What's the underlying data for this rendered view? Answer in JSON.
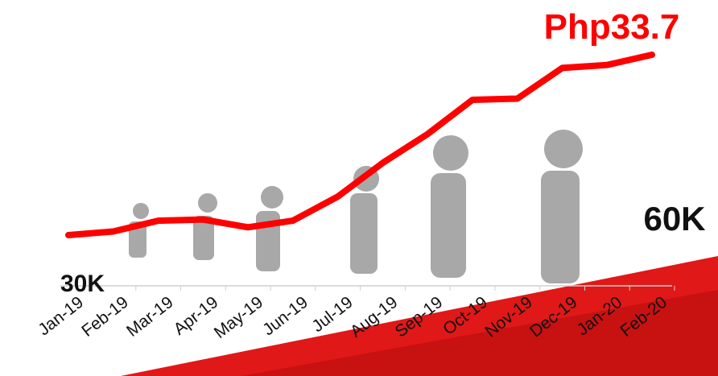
{
  "chart_data": {
    "type": "line",
    "annotations": [
      "Php33.7",
      "30K",
      "60K"
    ],
    "categories": [
      "Jan-19",
      "Feb-19",
      "Mar-19",
      "Apr-19",
      "May-19",
      "Jun-19",
      "Jul-19",
      "Aug-19",
      "Sep-19",
      "Oct-19",
      "Nov-19",
      "Dec-19",
      "Jan-20",
      "Feb-20"
    ],
    "values": [
      30,
      30.6,
      32.4,
      32.6,
      31.3,
      32.4,
      36.4,
      42.0,
      46.8,
      52.5,
      52.7,
      57.8,
      58.3,
      60
    ],
    "color": "#ff0000"
  }
}
